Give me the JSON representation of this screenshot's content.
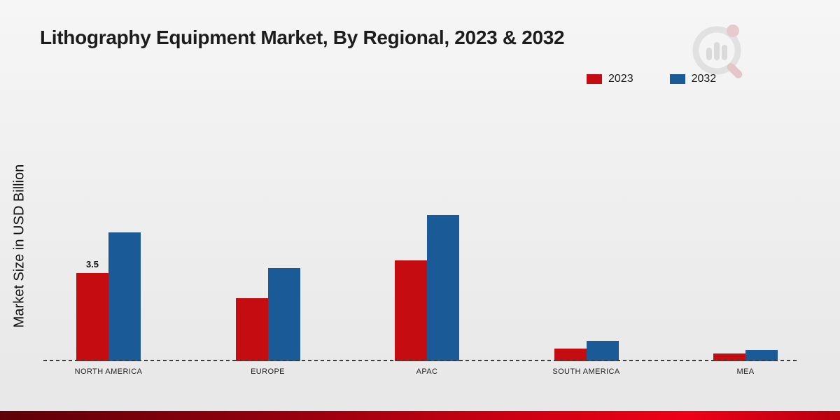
{
  "title": "Lithography Equipment Market, By Regional, 2023 & 2032",
  "ylabel": "Market Size in USD Billion",
  "legend": [
    {
      "label": "2023",
      "color": "#c50d11"
    },
    {
      "label": "2032",
      "color": "#1a5a96"
    }
  ],
  "chart_data": {
    "type": "bar",
    "title": "Lithography Equipment Market, By Regional, 2023 & 2032",
    "ylabel": "Market Size in USD Billion",
    "xlabel": "",
    "categories": [
      "NORTH AMERICA",
      "EUROPE",
      "APAC",
      "SOUTH AMERICA",
      "MEA"
    ],
    "series": [
      {
        "name": "2023",
        "color": "#c50d11",
        "values": [
          3.5,
          2.5,
          4.0,
          0.5,
          0.3
        ]
      },
      {
        "name": "2032",
        "color": "#1a5a96",
        "values": [
          5.1,
          3.7,
          5.8,
          0.8,
          0.45
        ]
      }
    ],
    "annotations": [
      {
        "category_index": 0,
        "series_index": 0,
        "text": "3.5"
      }
    ],
    "ylim": [
      0,
      6.5
    ],
    "grid": false,
    "legend_position": "top-right",
    "baseline_style": "dashed"
  }
}
